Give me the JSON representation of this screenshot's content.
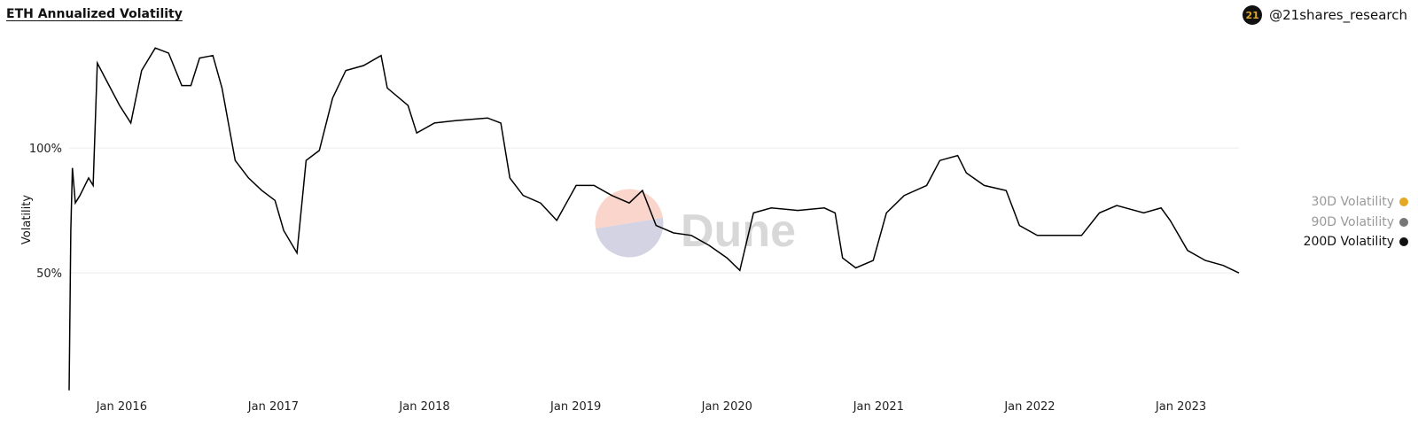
{
  "header": {
    "title": "ETH Annualized Volatility",
    "brand": "@21shares_research",
    "brand_logo_text": "21"
  },
  "watermark": "Dune",
  "chart_data": {
    "type": "line",
    "title": "ETH Annualized Volatility",
    "xlabel": "",
    "ylabel": "Volatility",
    "ylim": [
      1.5,
      141.5
    ],
    "xlim": [
      "2015-08-27",
      "2023-05-21"
    ],
    "y_ticks": [
      {
        "value": 100,
        "label": "100%"
      },
      {
        "value": 50,
        "label": "50%"
      }
    ],
    "x_ticks": [
      {
        "value": "2016-01-01",
        "label": "Jan 2016"
      },
      {
        "value": "2017-01-01",
        "label": "Jan 2017"
      },
      {
        "value": "2018-01-01",
        "label": "Jan 2018"
      },
      {
        "value": "2019-01-01",
        "label": "Jan 2019"
      },
      {
        "value": "2020-01-01",
        "label": "Jan 2020"
      },
      {
        "value": "2021-01-01",
        "label": "Jan 2021"
      },
      {
        "value": "2022-01-01",
        "label": "Jan 2022"
      },
      {
        "value": "2023-01-01",
        "label": "Jan 2023"
      }
    ],
    "grid": "horizontal",
    "legend_position": "right",
    "legend": [
      {
        "name": "30D Volatility",
        "color": "#e5a823",
        "text_color": "#999999"
      },
      {
        "name": "90D Volatility",
        "color": "#777777",
        "text_color": "#999999"
      },
      {
        "name": "200D Volatility",
        "color": "#111111",
        "text_color": "#111111"
      }
    ],
    "series": [
      {
        "name": "200D Volatility",
        "color": "#000000",
        "points": [
          [
            "2015-08-27",
            3
          ],
          [
            "2015-08-31",
            67
          ],
          [
            "2015-09-04",
            92
          ],
          [
            "2015-09-11",
            78
          ],
          [
            "2015-09-22",
            81
          ],
          [
            "2015-10-13",
            88
          ],
          [
            "2015-10-24",
            85
          ],
          [
            "2015-11-03",
            134
          ],
          [
            "2015-11-25",
            127
          ],
          [
            "2015-12-27",
            117
          ],
          [
            "2016-01-23",
            110
          ],
          [
            "2016-02-18",
            131
          ],
          [
            "2016-03-22",
            140
          ],
          [
            "2016-04-23",
            138
          ],
          [
            "2016-05-25",
            125
          ],
          [
            "2016-06-16",
            125
          ],
          [
            "2016-07-07",
            136
          ],
          [
            "2016-08-08",
            137
          ],
          [
            "2016-08-30",
            124
          ],
          [
            "2016-10-01",
            95
          ],
          [
            "2016-11-02",
            88
          ],
          [
            "2016-12-04",
            83
          ],
          [
            "2017-01-05",
            79
          ],
          [
            "2017-01-26",
            67
          ],
          [
            "2017-02-27",
            58
          ],
          [
            "2017-03-21",
            95
          ],
          [
            "2017-04-22",
            99
          ],
          [
            "2017-05-24",
            120
          ],
          [
            "2017-06-25",
            131
          ],
          [
            "2017-08-07",
            133
          ],
          [
            "2017-09-18",
            137
          ],
          [
            "2017-10-03",
            124
          ],
          [
            "2017-11-22",
            117
          ],
          [
            "2017-12-13",
            106
          ],
          [
            "2018-01-25",
            110
          ],
          [
            "2018-03-19",
            111
          ],
          [
            "2018-06-02",
            112
          ],
          [
            "2018-07-04",
            110
          ],
          [
            "2018-07-26",
            88
          ],
          [
            "2018-08-27",
            81
          ],
          [
            "2018-10-08",
            78
          ],
          [
            "2018-11-16",
            71
          ],
          [
            "2019-01-02",
            85
          ],
          [
            "2019-02-14",
            85
          ],
          [
            "2019-03-29",
            81
          ],
          [
            "2019-05-10",
            78
          ],
          [
            "2019-06-11",
            83
          ],
          [
            "2019-07-14",
            69
          ],
          [
            "2019-08-25",
            66
          ],
          [
            "2019-10-07",
            65
          ],
          [
            "2019-11-19",
            61
          ],
          [
            "2020-01-01",
            56
          ],
          [
            "2020-02-01",
            51
          ],
          [
            "2020-03-05",
            74
          ],
          [
            "2020-04-17",
            76
          ],
          [
            "2020-06-20",
            75
          ],
          [
            "2020-08-23",
            76
          ],
          [
            "2020-09-18",
            74
          ],
          [
            "2020-10-06",
            56
          ],
          [
            "2020-11-07",
            52
          ],
          [
            "2020-12-19",
            55
          ],
          [
            "2021-01-20",
            74
          ],
          [
            "2021-03-04",
            81
          ],
          [
            "2021-04-27",
            85
          ],
          [
            "2021-05-29",
            95
          ],
          [
            "2021-07-11",
            97
          ],
          [
            "2021-08-01",
            90
          ],
          [
            "2021-09-13",
            85
          ],
          [
            "2021-11-05",
            83
          ],
          [
            "2021-12-07",
            69
          ],
          [
            "2022-01-19",
            65
          ],
          [
            "2022-03-24",
            65
          ],
          [
            "2022-05-06",
            65
          ],
          [
            "2022-06-18",
            74
          ],
          [
            "2022-07-30",
            77
          ],
          [
            "2022-10-03",
            74
          ],
          [
            "2022-11-14",
            76
          ],
          [
            "2022-12-06",
            71
          ],
          [
            "2023-01-17",
            59
          ],
          [
            "2023-03-01",
            55
          ],
          [
            "2023-04-13",
            53
          ],
          [
            "2023-05-21",
            50
          ]
        ]
      }
    ]
  }
}
